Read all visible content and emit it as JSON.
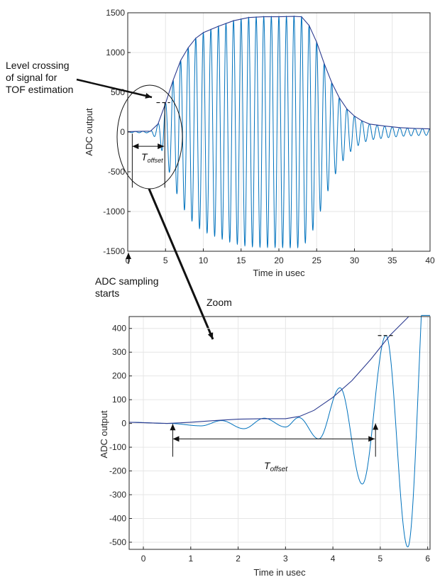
{
  "chart_data": [
    {
      "type": "line",
      "panel": "overview",
      "xlabel": "Time in usec",
      "ylabel": "ADC output",
      "xlim": [
        0,
        40
      ],
      "ylim": [
        -1500,
        1500
      ],
      "xticks": [
        0,
        5,
        10,
        15,
        20,
        25,
        30,
        35,
        40
      ],
      "yticks": [
        -1500,
        -1000,
        -500,
        0,
        500,
        1000,
        1500
      ],
      "grid": true,
      "carrier_frequency_mhz": 1.0,
      "series": [
        {
          "role": "signal",
          "color": "#0072BD",
          "envelope_x": [
            0,
            2,
            3,
            4,
            5,
            6,
            7,
            8,
            9,
            10,
            12,
            14,
            16,
            18,
            20,
            22,
            23,
            24,
            25,
            26,
            27,
            28,
            29,
            30,
            31,
            32,
            34,
            36,
            38,
            40
          ],
          "envelope_y": [
            5,
            10,
            10,
            100,
            360,
            650,
            900,
            1060,
            1180,
            1250,
            1330,
            1400,
            1440,
            1450,
            1450,
            1455,
            1450,
            1340,
            1130,
            860,
            620,
            430,
            290,
            200,
            140,
            100,
            75,
            55,
            45,
            40
          ]
        },
        {
          "role": "envelope",
          "color": "#2b3a8f",
          "x": [
            0,
            2,
            3,
            4,
            5,
            6,
            7,
            8,
            9,
            10,
            12,
            14,
            16,
            18,
            20,
            22,
            23,
            24,
            25,
            26,
            27,
            28,
            29,
            30,
            31,
            32,
            34,
            36,
            38,
            40
          ],
          "y": [
            5,
            10,
            10,
            100,
            360,
            650,
            900,
            1060,
            1180,
            1250,
            1330,
            1400,
            1440,
            1450,
            1450,
            1455,
            1450,
            1340,
            1130,
            860,
            620,
            430,
            290,
            200,
            140,
            100,
            75,
            55,
            45,
            40
          ]
        }
      ],
      "threshold_level": 370,
      "threshold_x": [
        3.8,
        5.6
      ],
      "t_offset_range": [
        0.6,
        4.9
      ],
      "annotations": {
        "level_crossing": [
          "Level crossing",
          "of signal for",
          "TOF estimation"
        ],
        "sampling_start": [
          "ADC sampling",
          "starts"
        ],
        "toffset_main": "T",
        "toffset_sub": "offset"
      }
    },
    {
      "type": "line",
      "panel": "zoom",
      "title_annotation": "Zoom",
      "xlabel": "Time in usec",
      "ylabel": "ADC output",
      "xlim": [
        -0.3,
        6.05
      ],
      "ylim": [
        -530,
        450
      ],
      "xticks": [
        0,
        1,
        2,
        3,
        4,
        5,
        6
      ],
      "yticks": [
        -500,
        -400,
        -300,
        -200,
        -100,
        0,
        100,
        200,
        300,
        400
      ],
      "grid": true,
      "carrier_frequency_mhz": 2.2,
      "series": [
        {
          "role": "signal",
          "color": "#0072BD",
          "peak_x": [
            0.55,
            1.22,
            1.65,
            2.12,
            2.55,
            3.0,
            3.28,
            3.7,
            4.15,
            4.62,
            5.12,
            5.58
          ],
          "peak_y": [
            0,
            -10,
            12,
            -22,
            22,
            -15,
            25,
            -65,
            150,
            -255,
            370,
            -520
          ]
        },
        {
          "role": "envelope",
          "color": "#2b3a8f",
          "x": [
            -0.3,
            0.5,
            1.0,
            1.5,
            2.0,
            2.5,
            3.0,
            3.3,
            3.6,
            4.0,
            4.4,
            4.8,
            5.2,
            5.6,
            6.05
          ],
          "y": [
            5,
            0,
            5,
            12,
            18,
            20,
            20,
            30,
            55,
            110,
            180,
            270,
            370,
            450,
            470
          ]
        }
      ],
      "threshold_level": 370,
      "threshold_x": [
        4.95,
        5.3
      ],
      "t_offset_range": [
        0.62,
        4.9
      ],
      "annotations": {
        "toffset_main": "T",
        "toffset_sub": "offset"
      }
    }
  ]
}
